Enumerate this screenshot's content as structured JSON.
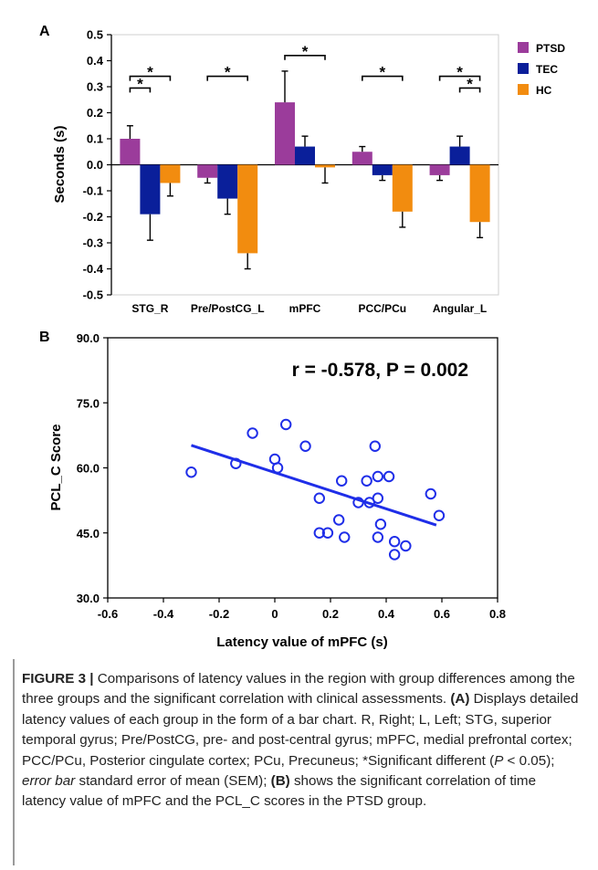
{
  "chart_data": [
    {
      "panel": "A",
      "type": "bar",
      "ylabel": "Seconds (s)",
      "ylim": [
        -0.5,
        0.5
      ],
      "yticks": [
        -0.5,
        -0.4,
        -0.3,
        -0.2,
        -0.1,
        0.0,
        0.1,
        0.2,
        0.3,
        0.4,
        0.5
      ],
      "ytick_labels": [
        "-0.5",
        "-0.4",
        "-0.3",
        "-0.2",
        "-0.1",
        "0.0",
        "0.1",
        "0.2",
        "0.3",
        "0.4",
        "0.5"
      ],
      "categories": [
        "STG_R",
        "Pre/PostCG_L",
        "mPFC",
        "PCC/PCu",
        "Angular_L"
      ],
      "series": [
        {
          "name": "PTSD",
          "color": "#9b3c9b",
          "values": [
            0.1,
            -0.05,
            0.24,
            0.05,
            -0.04
          ],
          "sem": [
            0.05,
            0.02,
            0.12,
            0.02,
            0.02
          ]
        },
        {
          "name": "TEC",
          "color": "#0a1f9a",
          "values": [
            -0.19,
            -0.13,
            0.07,
            -0.04,
            0.07
          ],
          "sem": [
            0.1,
            0.06,
            0.04,
            0.02,
            0.04
          ]
        },
        {
          "name": "HC",
          "color": "#f28c0f",
          "values": [
            -0.07,
            -0.34,
            -0.01,
            -0.18,
            -0.22
          ],
          "sem": [
            0.05,
            0.06,
            0.06,
            0.06,
            0.06
          ]
        }
      ],
      "significance_marker": "*",
      "legend_position": "top-right",
      "grid": false
    },
    {
      "panel": "B",
      "type": "scatter",
      "xlabel": "Latency value of mPFC (s)",
      "ylabel": "PCL_C Score",
      "xlim": [
        -0.6,
        0.8
      ],
      "ylim": [
        30,
        90
      ],
      "xticks": [
        -0.6,
        -0.4,
        -0.2,
        0,
        0.2,
        0.4,
        0.6,
        0.8
      ],
      "xtick_labels": [
        "-0.6",
        "-0.4",
        "-0.2",
        "0",
        "0.2",
        "0.4",
        "0.6",
        "0.8"
      ],
      "yticks": [
        30,
        45,
        60,
        75,
        90
      ],
      "ytick_labels": [
        "30.0",
        "45.0",
        "60.0",
        "75.0",
        "90.0"
      ],
      "annotation": "r = -0.578, P = 0.002",
      "marker_color": "#1f2ee8",
      "fit_line": {
        "x": [
          -0.3,
          0.58
        ],
        "y": [
          65.2,
          46.8
        ]
      },
      "points": [
        {
          "x": -0.3,
          "y": 59
        },
        {
          "x": -0.14,
          "y": 61
        },
        {
          "x": -0.08,
          "y": 68
        },
        {
          "x": 0.0,
          "y": 62
        },
        {
          "x": 0.01,
          "y": 60
        },
        {
          "x": 0.04,
          "y": 70
        },
        {
          "x": 0.11,
          "y": 65
        },
        {
          "x": 0.16,
          "y": 53
        },
        {
          "x": 0.16,
          "y": 45
        },
        {
          "x": 0.19,
          "y": 45
        },
        {
          "x": 0.23,
          "y": 48
        },
        {
          "x": 0.24,
          "y": 57
        },
        {
          "x": 0.25,
          "y": 44
        },
        {
          "x": 0.3,
          "y": 52
        },
        {
          "x": 0.33,
          "y": 57
        },
        {
          "x": 0.34,
          "y": 52
        },
        {
          "x": 0.36,
          "y": 65
        },
        {
          "x": 0.37,
          "y": 58
        },
        {
          "x": 0.37,
          "y": 53
        },
        {
          "x": 0.37,
          "y": 44
        },
        {
          "x": 0.38,
          "y": 47
        },
        {
          "x": 0.41,
          "y": 58
        },
        {
          "x": 0.43,
          "y": 43
        },
        {
          "x": 0.43,
          "y": 40
        },
        {
          "x": 0.47,
          "y": 42
        },
        {
          "x": 0.56,
          "y": 54
        },
        {
          "x": 0.59,
          "y": 49
        }
      ]
    }
  ],
  "caption": {
    "label": "FIGURE 3 |",
    "s1": " Comparisons of latency values in the region with group differences among the three groups and the significant correlation with clinical assessments. ",
    "a_label": "(A)",
    "s2": " Displays detailed latency values of each group in the form of a bar chart. R, Right; L, Left; STG, superior temporal gyrus; Pre/PostCG, pre- and post-central gyrus; mPFC, medial prefrontal cortex; PCC/PCu, Posterior cingulate cortex; PCu, Precuneus; *Significant different (",
    "p_italic": "P",
    "s3": " < 0.05); ",
    "errbar_italic": "error bar",
    "s4": " standard error of mean (SEM); ",
    "b_label": "(B)",
    "s5": " shows the significant correlation of time latency value of mPFC and the PCL_C scores in the PTSD group."
  }
}
